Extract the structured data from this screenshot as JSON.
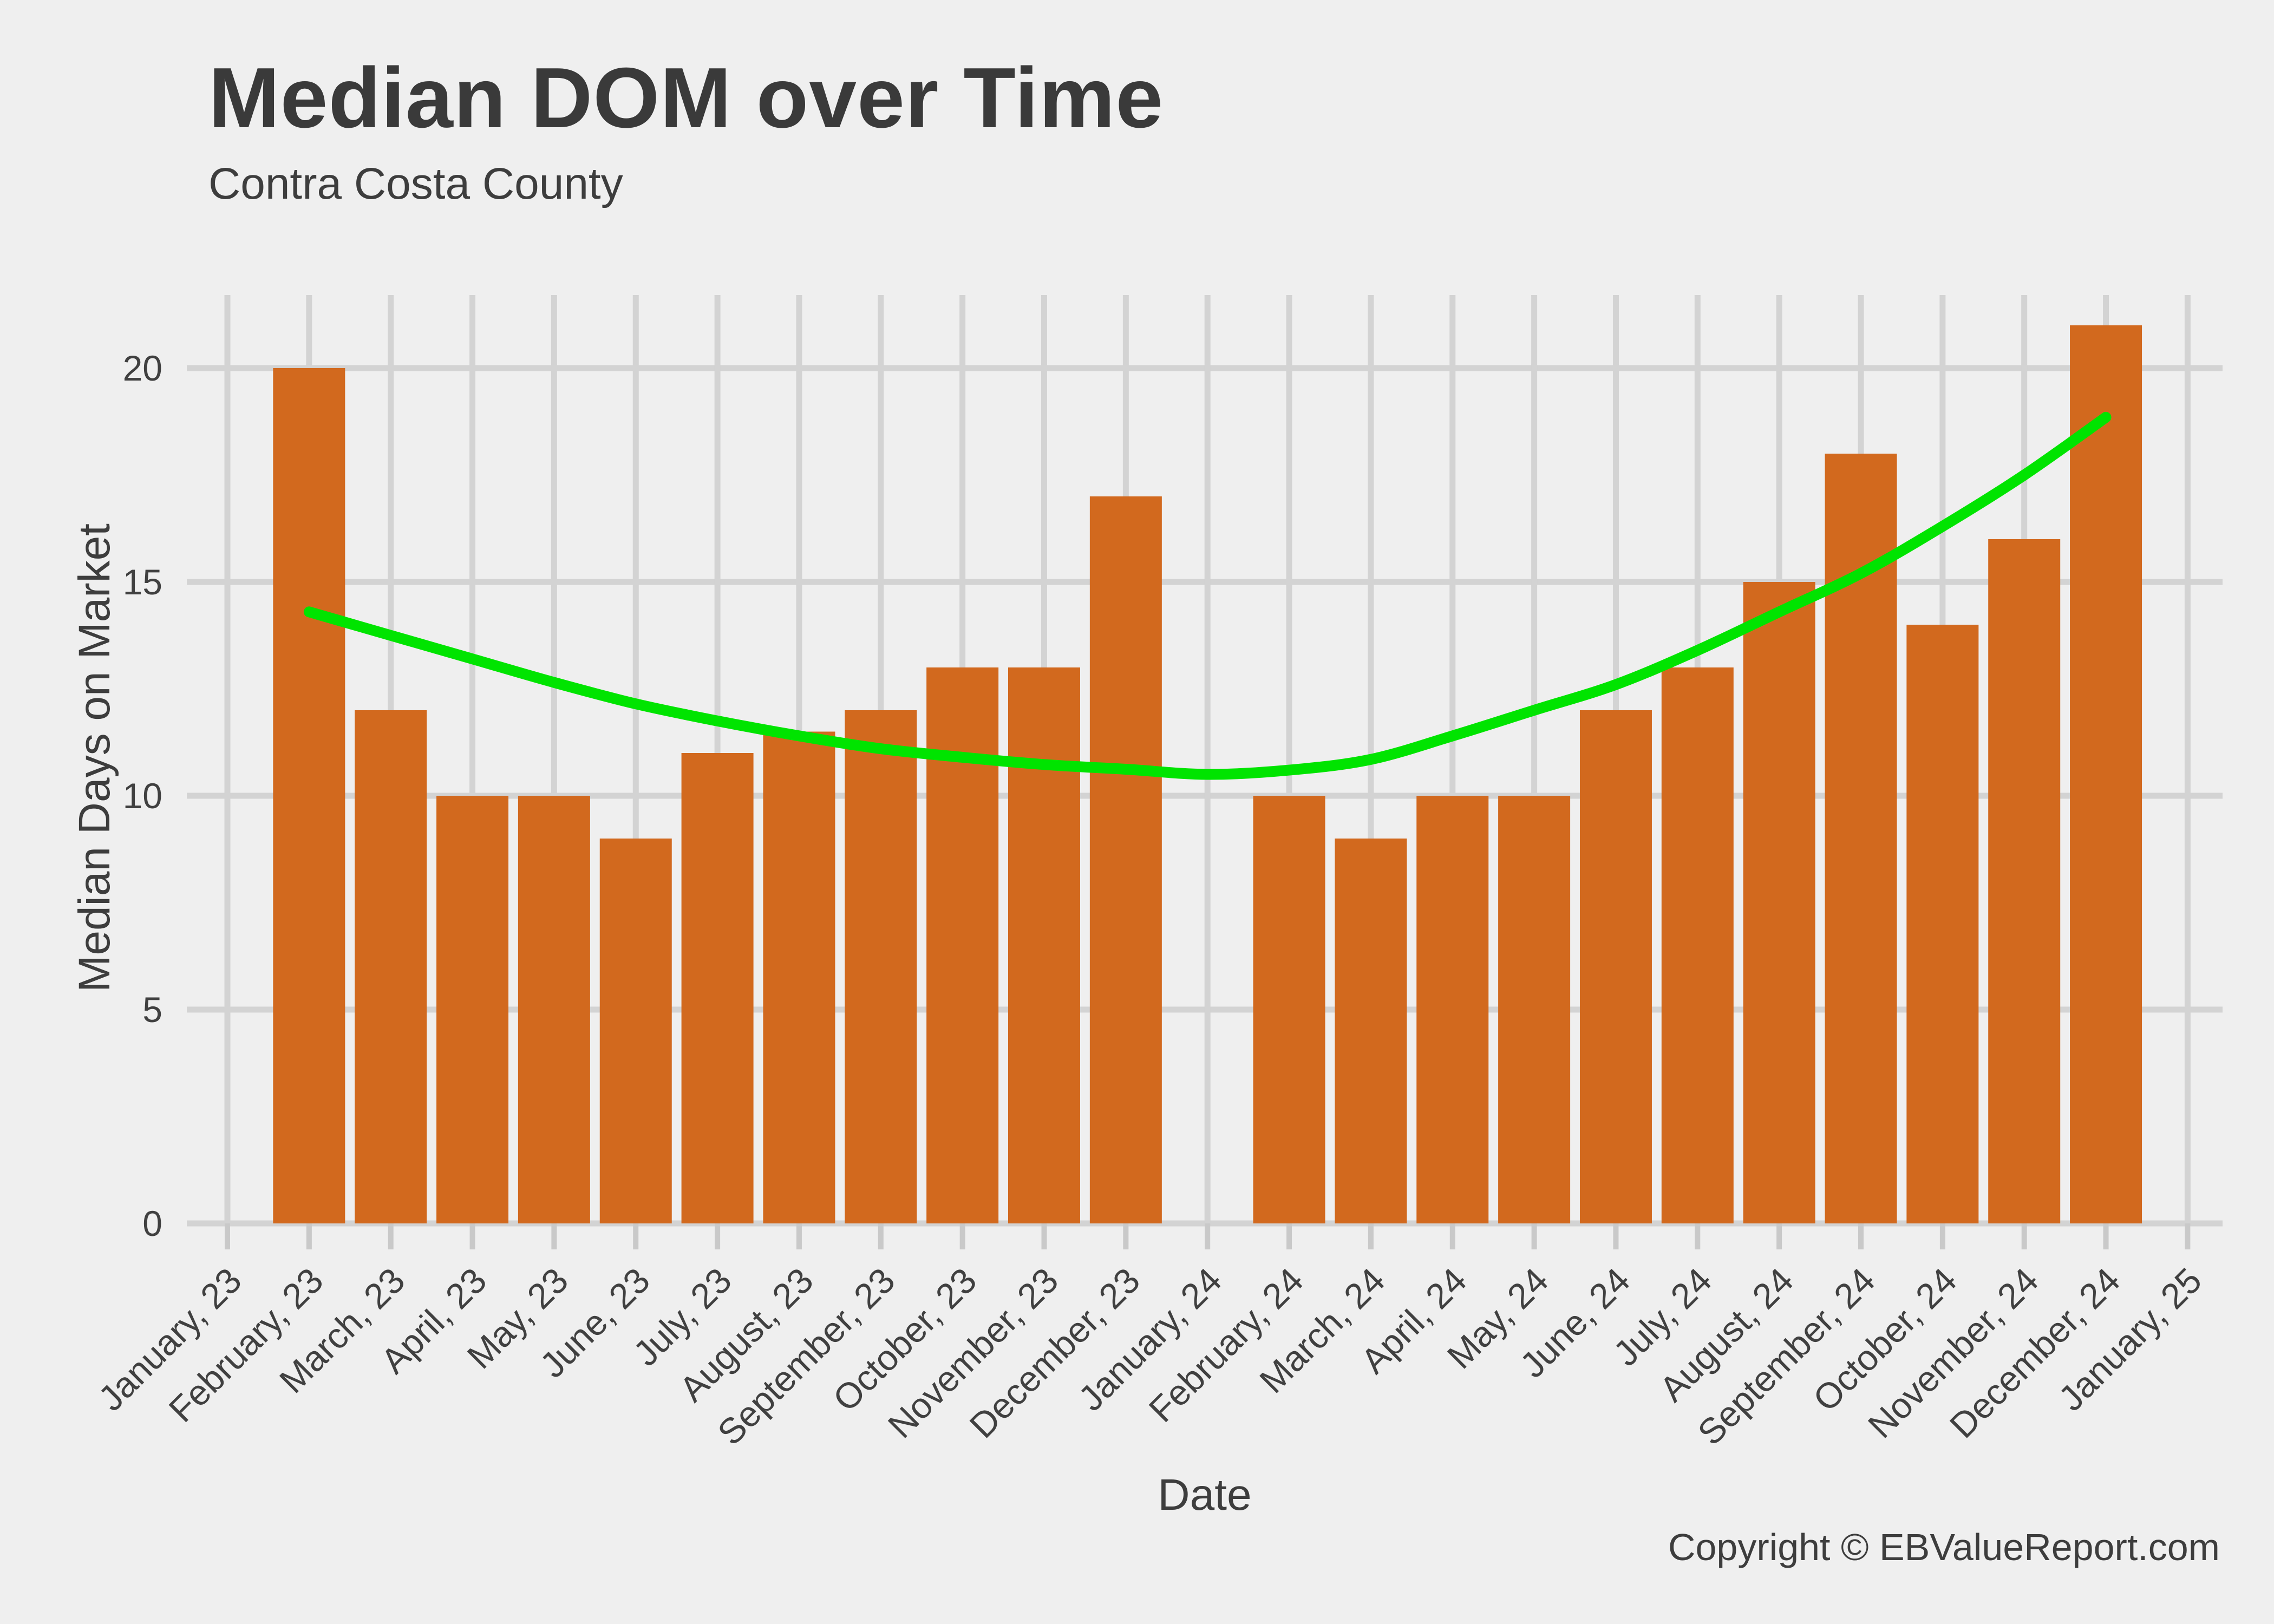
{
  "header": {
    "title": "Median DOM over Time",
    "subtitle": "Contra Costa County"
  },
  "footer": {
    "copyright": "Copyright  © EBValueReport.com"
  },
  "chart_data": {
    "type": "bar",
    "title": "Median DOM over Time",
    "subtitle": "Contra Costa County",
    "xlabel": "Date",
    "ylabel": "Median Days on Market",
    "ylim": [
      0,
      21.7
    ],
    "yticks": [
      0,
      5,
      10,
      15,
      20
    ],
    "grid": true,
    "legend": "none",
    "categories": [
      "January, 23",
      "February, 23",
      "March, 23",
      "April, 23",
      "May, 23",
      "June, 23",
      "July, 23",
      "August, 23",
      "September, 23",
      "October, 23",
      "November, 23",
      "December, 23",
      "January, 24",
      "February, 24",
      "March, 24",
      "April, 24",
      "May, 24",
      "June, 24",
      "July, 24",
      "August, 24",
      "September, 24",
      "October, 24",
      "November, 24",
      "December, 24",
      "January, 25"
    ],
    "series": [
      {
        "name": "Median Days on Market",
        "type": "bar",
        "values": [
          null,
          20,
          12,
          10,
          10,
          9,
          11,
          11.5,
          12,
          13,
          13,
          17,
          null,
          10,
          9,
          10,
          10,
          12,
          13,
          15,
          18,
          14,
          16,
          21,
          null
        ]
      },
      {
        "name": "Trend (smoothed)",
        "type": "smooth-line",
        "points": [
          [
            1,
            14.3
          ],
          [
            2,
            13.75
          ],
          [
            3,
            13.2
          ],
          [
            4,
            12.65
          ],
          [
            5,
            12.15
          ],
          [
            6,
            11.75
          ],
          [
            7,
            11.4
          ],
          [
            8,
            11.1
          ],
          [
            9,
            10.9
          ],
          [
            10,
            10.73
          ],
          [
            11,
            10.62
          ],
          [
            12,
            10.5
          ],
          [
            13,
            10.6
          ],
          [
            14,
            10.85
          ],
          [
            15,
            11.4
          ],
          [
            16,
            12.0
          ],
          [
            17,
            12.6
          ],
          [
            18,
            13.4
          ],
          [
            19,
            14.3
          ],
          [
            20,
            15.2
          ],
          [
            21,
            16.3
          ],
          [
            22,
            17.5
          ],
          [
            23,
            18.85
          ]
        ]
      }
    ],
    "colors": {
      "bar": "#d2691e",
      "trend_line": "#00e400",
      "background": "#efefef",
      "gridline": "#d3d3d3",
      "tick_mark": "#c9c9c9",
      "axis_text": "#404040",
      "title_text": "#3a3a3a"
    }
  }
}
